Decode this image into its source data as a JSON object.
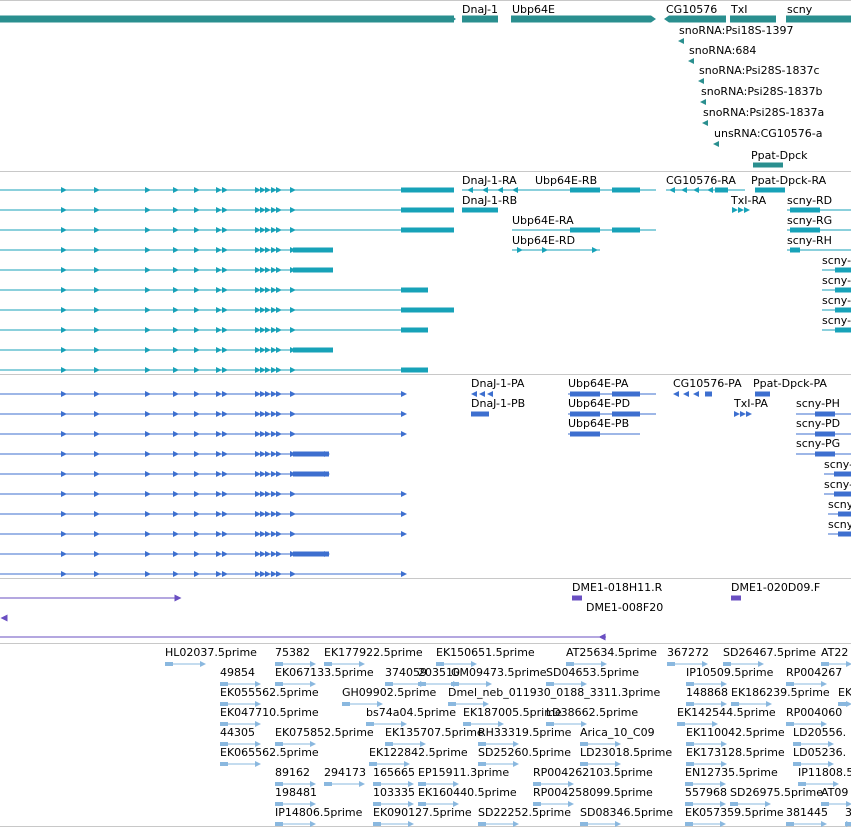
{
  "tracks": {
    "gene_span": {
      "name": "gene-span",
      "color": "#2a8f8f",
      "features": [
        {
          "label": ""
        },
        {
          "label": "DnaJ-1"
        },
        {
          "label": "Ubp64E"
        },
        {
          "label": "CG10576"
        },
        {
          "label": "TxI"
        },
        {
          "label": "scny"
        },
        {
          "label": "snoRNA:Psi18S-1397"
        },
        {
          "label": "snoRNA:684"
        },
        {
          "label": "snoRNA:Psi28S-1837c"
        },
        {
          "label": "snoRNA:Psi28S-1837b"
        },
        {
          "label": "snoRNA:Psi28S-1837a"
        },
        {
          "label": "unsRNA:CG10576-a"
        },
        {
          "label": "Ppat-Dpck"
        }
      ]
    },
    "transcripts": {
      "name": "transcripts",
      "color": "#17a2b8",
      "labels": [
        "DnaJ-1-RA",
        "DnaJ-1-RB",
        "Ubp64E-RB",
        "Ubp64E-RA",
        "Ubp64E-RD",
        "CG10576-RA",
        "Ppat-Dpck-RA",
        "TxI-RA",
        "scny-RD",
        "scny-RG",
        "scny-RH",
        "scny-",
        "scny-",
        "scny-",
        "scny-"
      ]
    },
    "cds": {
      "name": "cds",
      "color": "#3d6fcf",
      "labels": [
        "DnaJ-1-PA",
        "DnaJ-1-PB",
        "Ubp64E-PA",
        "Ubp64E-PD",
        "Ubp64E-PB",
        "CG10576-PA",
        "Ppat-Dpck-PA",
        "TxI-PA",
        "scny-PH",
        "scny-PD",
        "scny-PG",
        "scny-",
        "scny-",
        "scny",
        "scny"
      ]
    },
    "clones": {
      "name": "clones",
      "color": "#6a4fc2",
      "labels": [
        "DME1-018H11.R",
        "DME1-020D09.F",
        "DME1-008F20"
      ]
    },
    "ests": {
      "name": "ests",
      "color": "#8ab8df",
      "labels": [
        "HL02037.5prime",
        "75382",
        "EK177922.5prime",
        "EK150651.5prime",
        "AT25634.5prime",
        "367272",
        "SD26467.5prime",
        "AT22",
        "49854",
        "EK067133.5prime",
        "374059",
        "203510",
        "GM09473.5prime",
        "SD04653.5prime",
        "IP10509.5prime",
        "RP004267",
        "EK055562.5prime",
        "GH09902.5prime",
        "Dmel_neb_011930_0188_3311.3prime",
        "148868",
        "EK186239.5prime",
        "EK",
        "EK047710.5prime",
        "bs74a04.5prime",
        "EK187005.5prime",
        "LD38662.5prime",
        "EK142544.5prime",
        "RP004060",
        "44305",
        "EK075852.5prime",
        "EK135707.5prime",
        "RH33319.5prime",
        "Arica_10_C09",
        "EK110042.5prime",
        "LD20556.",
        "EK065562.5prime",
        "EK122842.5prime",
        "SD25260.5prime",
        "LD23018.5prime",
        "EK173128.5prime",
        "LD05236.",
        "89162",
        "294173",
        "165665",
        "EP15911.3prime",
        "RP004262103.5prime",
        "EN12735.5prime",
        "IP11808.5prime",
        "198481",
        "103335",
        "EK160440.5prime",
        "RP004258099.5prime",
        "557968",
        "SD26975.5prime",
        "AT09",
        "IP14806.5prime",
        "EK090127.5prime",
        "SD22252.5prime",
        "SD08346.5prime",
        "EK057359.5prime",
        "381445",
        "3"
      ]
    }
  }
}
